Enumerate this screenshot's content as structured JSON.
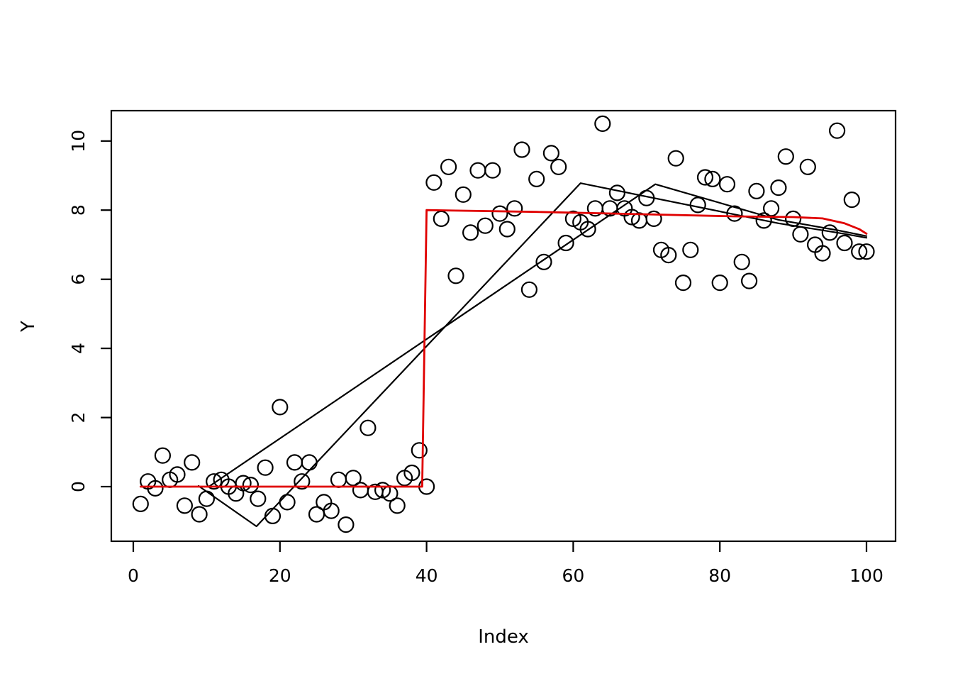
{
  "figure": {
    "background": "#ffffff",
    "point_color": "#000000",
    "fit_line_color": "#000000",
    "true_line_color": "#e00000"
  },
  "chart_data": {
    "type": "scatter",
    "title": "",
    "xlabel": "Index",
    "ylabel": "Y",
    "x_ticks": [
      0,
      20,
      40,
      60,
      80,
      100
    ],
    "y_ticks": [
      0,
      2,
      4,
      6,
      8,
      10
    ],
    "xlim": [
      -3,
      104
    ],
    "ylim": [
      -1.6,
      10.9
    ],
    "grid": false,
    "legend": "none",
    "points_x_rule": "x = index 1..100",
    "points_y": [
      -0.5,
      0.15,
      -0.05,
      0.9,
      0.2,
      0.35,
      -0.55,
      0.7,
      -0.8,
      -0.35,
      0.15,
      0.2,
      0.0,
      -0.2,
      0.1,
      0.05,
      -0.35,
      0.55,
      -0.85,
      2.3,
      -0.45,
      0.7,
      0.15,
      0.7,
      -0.8,
      -0.45,
      -0.7,
      0.2,
      -1.1,
      0.25,
      -0.1,
      1.7,
      -0.15,
      -0.1,
      -0.2,
      -0.55,
      0.25,
      0.4,
      1.05,
      0.0,
      8.8,
      7.75,
      9.25,
      6.1,
      8.45,
      7.35,
      9.15,
      7.55,
      9.15,
      7.9,
      7.45,
      8.05,
      9.75,
      5.7,
      8.9,
      6.5,
      9.65,
      9.25,
      7.05,
      7.75,
      7.65,
      7.45,
      8.05,
      10.5,
      8.05,
      8.5,
      8.05,
      7.8,
      7.7,
      8.35,
      7.75,
      6.85,
      6.7,
      9.5,
      5.9,
      6.85,
      8.15,
      8.95,
      8.9,
      5.9,
      8.75,
      7.9,
      6.5,
      5.95,
      8.55,
      7.7,
      8.05,
      8.65,
      9.55,
      7.75,
      7.3,
      9.25,
      7.0,
      6.75,
      7.35,
      10.3,
      7.05,
      8.3,
      6.8,
      6.8
    ],
    "lines": [
      {
        "name": "true-step-function",
        "color": "#e00000",
        "width": 2.8,
        "points": [
          [
            1,
            0
          ],
          [
            39.4,
            0
          ],
          [
            40,
            8
          ],
          [
            55,
            7.95
          ],
          [
            70,
            7.88
          ],
          [
            82,
            7.82
          ],
          [
            90,
            7.8
          ],
          [
            94,
            7.76
          ],
          [
            97,
            7.62
          ],
          [
            99,
            7.45
          ],
          [
            100,
            7.32
          ]
        ]
      },
      {
        "name": "piecewise-fit-line-1",
        "color": "#000000",
        "width": 2.2,
        "points": [
          [
            8.9,
            0.02
          ],
          [
            16.8,
            -1.15
          ],
          [
            61,
            8.78
          ],
          [
            88,
            7.62
          ],
          [
            96,
            7.35
          ],
          [
            100,
            7.2
          ]
        ]
      },
      {
        "name": "piecewise-fit-line-2",
        "color": "#000000",
        "width": 2.2,
        "points": [
          [
            10.3,
            0.0
          ],
          [
            71.2,
            8.75
          ],
          [
            88,
            7.72
          ],
          [
            96,
            7.42
          ],
          [
            100,
            7.25
          ]
        ]
      }
    ]
  }
}
